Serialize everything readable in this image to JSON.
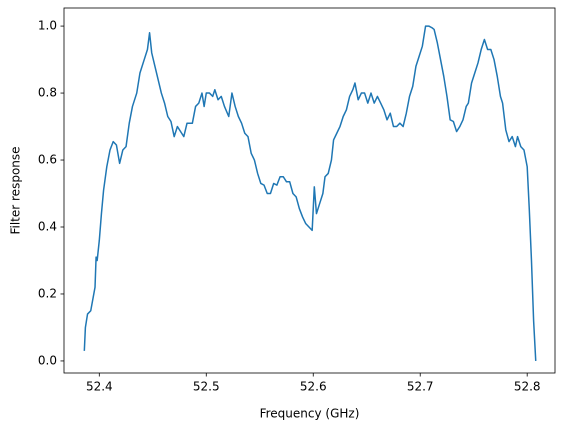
{
  "chart_data": {
    "type": "line",
    "xlabel": "Frequency (GHz)",
    "ylabel": "Filter response",
    "xlim": [
      52.367,
      52.826
    ],
    "ylim": [
      -0.036,
      1.054
    ],
    "xticks": [
      52.4,
      52.5,
      52.6,
      52.7,
      52.8
    ],
    "yticks": [
      {
        "value": 0,
        "label": "0.0"
      },
      0.2,
      0.4,
      0.6,
      0.8,
      {
        "value": 1,
        "label": "1.0"
      }
    ],
    "series": [
      {
        "color": "#1f77b4",
        "x": [
          52.386,
          52.387,
          52.389,
          52.392,
          52.396,
          52.397,
          52.398,
          52.4,
          52.402,
          52.404,
          52.407,
          52.41,
          52.413,
          52.416,
          52.419,
          52.422,
          52.425,
          52.428,
          52.431,
          52.435,
          52.438,
          52.442,
          52.445,
          52.447,
          52.449,
          52.452,
          52.455,
          52.458,
          52.461,
          52.464,
          52.467,
          52.47,
          52.473,
          52.477,
          52.479,
          52.482,
          52.487,
          52.49,
          52.493,
          52.496,
          52.498,
          52.5,
          52.503,
          52.506,
          52.508,
          52.511,
          52.514,
          52.517,
          52.521,
          52.524,
          52.527,
          52.53,
          52.533,
          52.536,
          52.539,
          52.542,
          52.545,
          52.548,
          52.551,
          52.554,
          52.557,
          52.56,
          52.563,
          52.566,
          52.569,
          52.572,
          52.575,
          52.578,
          52.581,
          52.584,
          52.587,
          52.59,
          52.593,
          52.596,
          52.599,
          52.601,
          52.603,
          52.606,
          52.609,
          52.611,
          52.614,
          52.617,
          52.619,
          52.622,
          52.625,
          52.628,
          52.631,
          52.634,
          52.637,
          52.639,
          52.642,
          52.645,
          52.648,
          52.651,
          52.654,
          52.657,
          52.66,
          52.663,
          52.666,
          52.669,
          52.672,
          52.675,
          52.678,
          52.681,
          52.684,
          52.687,
          52.69,
          52.693,
          52.696,
          52.699,
          52.702,
          52.705,
          52.708,
          52.711,
          52.713,
          52.716,
          52.719,
          52.722,
          52.725,
          52.728,
          52.731,
          52.734,
          52.737,
          52.74,
          52.743,
          52.745,
          52.748,
          52.751,
          52.754,
          52.757,
          52.76,
          52.763,
          52.766,
          52.769,
          52.772,
          52.775,
          52.777,
          52.78,
          52.783,
          52.786,
          52.789,
          52.791,
          52.794,
          52.797,
          52.8,
          52.802,
          52.804,
          52.806,
          52.808
        ],
        "values": [
          0.03,
          0.1,
          0.14,
          0.15,
          0.22,
          0.31,
          0.3,
          0.36,
          0.44,
          0.51,
          0.58,
          0.63,
          0.655,
          0.645,
          0.59,
          0.63,
          0.64,
          0.71,
          0.76,
          0.8,
          0.86,
          0.9,
          0.93,
          0.98,
          0.92,
          0.88,
          0.84,
          0.8,
          0.77,
          0.73,
          0.715,
          0.67,
          0.7,
          0.68,
          0.67,
          0.71,
          0.71,
          0.76,
          0.77,
          0.8,
          0.76,
          0.8,
          0.8,
          0.79,
          0.81,
          0.78,
          0.79,
          0.76,
          0.73,
          0.8,
          0.76,
          0.73,
          0.71,
          0.68,
          0.67,
          0.62,
          0.6,
          0.56,
          0.53,
          0.525,
          0.5,
          0.5,
          0.53,
          0.525,
          0.55,
          0.55,
          0.535,
          0.535,
          0.5,
          0.49,
          0.455,
          0.43,
          0.41,
          0.4,
          0.39,
          0.52,
          0.44,
          0.47,
          0.5,
          0.55,
          0.56,
          0.6,
          0.66,
          0.68,
          0.7,
          0.73,
          0.75,
          0.79,
          0.81,
          0.83,
          0.78,
          0.8,
          0.8,
          0.77,
          0.8,
          0.77,
          0.79,
          0.77,
          0.75,
          0.72,
          0.74,
          0.7,
          0.7,
          0.71,
          0.7,
          0.74,
          0.79,
          0.82,
          0.88,
          0.91,
          0.94,
          1.0,
          1.0,
          0.995,
          0.99,
          0.95,
          0.9,
          0.85,
          0.79,
          0.72,
          0.715,
          0.685,
          0.7,
          0.72,
          0.76,
          0.77,
          0.83,
          0.86,
          0.89,
          0.93,
          0.96,
          0.93,
          0.93,
          0.9,
          0.85,
          0.79,
          0.77,
          0.69,
          0.655,
          0.67,
          0.64,
          0.67,
          0.64,
          0.63,
          0.58,
          0.45,
          0.3,
          0.12,
          0.0
        ]
      }
    ]
  }
}
